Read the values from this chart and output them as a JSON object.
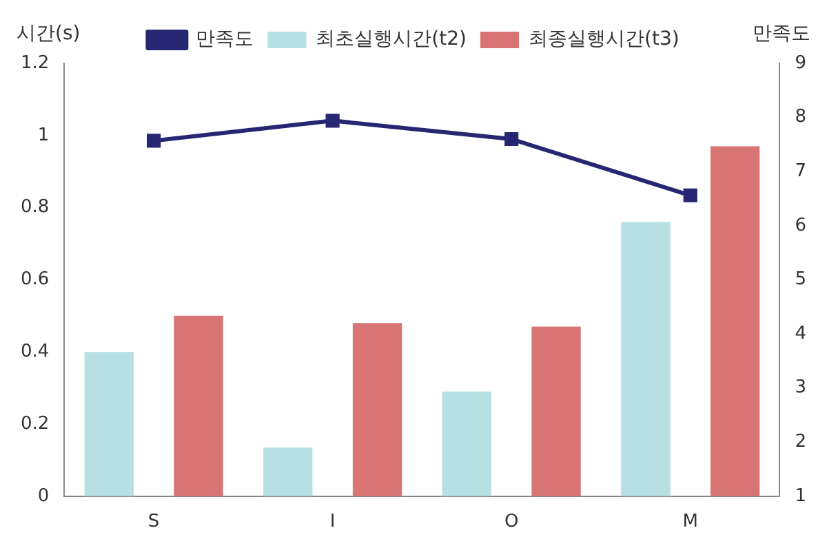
{
  "chart_data": {
    "type": "bar",
    "categories": [
      "S",
      "I",
      "O",
      "M"
    ],
    "ylabel": "시간(s)",
    "y2label": "만족도",
    "series": [
      {
        "name": "최초실행시간(t2)",
        "color": "#b7e0e3",
        "values": [
          0.4,
          0.135,
          0.29,
          0.76
        ]
      },
      {
        "name": "최종실행시간(t3)",
        "color": "#d87474",
        "values": [
          0.5,
          0.48,
          0.47,
          0.97
        ]
      },
      {
        "name": "만족도",
        "type": "line",
        "axis": "y2",
        "color": "#262673",
        "values": [
          7.57,
          7.94,
          7.6,
          6.56
        ]
      }
    ],
    "ylim": [
      0,
      1.2
    ],
    "yticks": [
      0,
      0.2,
      0.4,
      0.6,
      0.8,
      1,
      1.2
    ],
    "y2lim": [
      1,
      9
    ],
    "y2ticks": [
      1,
      2,
      3,
      4,
      5,
      6,
      7,
      8,
      9
    ],
    "grid": false,
    "legend": "top",
    "marker": "square"
  }
}
